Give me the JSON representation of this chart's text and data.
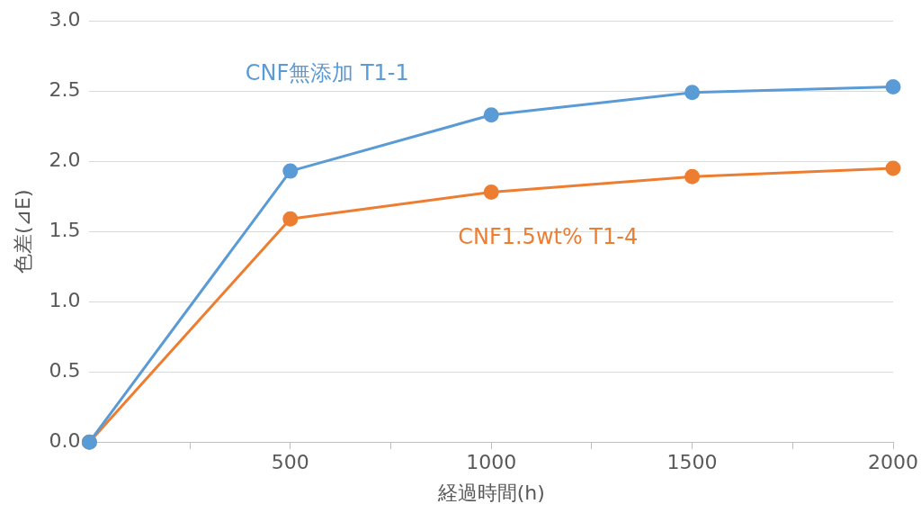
{
  "chart_data": {
    "type": "line",
    "xlabel": "経過時間(h)",
    "ylabel": "色差(⊿E)",
    "x": [
      0,
      500,
      1000,
      1500,
      2000
    ],
    "series": [
      {
        "name": "CNF無添加 T1-1",
        "color": "#5b9bd5",
        "values": [
          0,
          1.93,
          2.33,
          2.49,
          2.53
        ]
      },
      {
        "name": "CNF1.5wt% T1-4",
        "color": "#ed7d31",
        "values": [
          0,
          1.59,
          1.78,
          1.89,
          1.95
        ]
      }
    ],
    "xlim": [
      0,
      2000
    ],
    "xticks": [
      {
        "value": 0,
        "label": null
      },
      {
        "value": 250,
        "label": null
      },
      500,
      {
        "value": 750,
        "label": null
      },
      1000,
      {
        "value": 1250,
        "label": null
      },
      1500,
      {
        "value": 1750,
        "label": null
      },
      2000
    ],
    "ylim": [
      0,
      3
    ],
    "yticks": [
      {
        "value": 0,
        "label": "0.0"
      },
      {
        "value": 0.5,
        "label": "0.5"
      },
      {
        "value": 1,
        "label": "1.0"
      },
      {
        "value": 1.5,
        "label": "1.5"
      },
      {
        "value": 2,
        "label": "2.0"
      },
      {
        "value": 2.5,
        "label": "2.5"
      },
      {
        "value": 3,
        "label": "3.0"
      }
    ],
    "grid": "y",
    "legend": false,
    "marker": "circle",
    "line_style": "solid"
  }
}
